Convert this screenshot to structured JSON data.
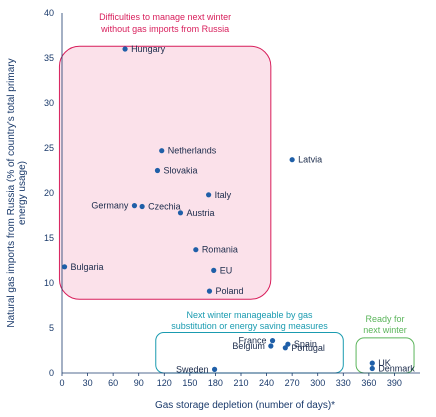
{
  "chart_data": {
    "type": "scatter",
    "xlabel": "Gas storage depletion (number of days)*",
    "ylabel": "Natural gas imports from Russia (% of country's total primary energy usage)",
    "ylabel_lines": [
      "Natural gas imports from Russia (% of country's total primary",
      "energy usage)"
    ],
    "xlim": [
      0,
      420
    ],
    "ylim": [
      0,
      40
    ],
    "x_ticks": [
      0,
      30,
      60,
      90,
      120,
      150,
      180,
      210,
      240,
      270,
      300,
      330,
      360,
      390
    ],
    "y_ticks": [
      0,
      5,
      10,
      15,
      20,
      25,
      30,
      35,
      40
    ],
    "grid": false,
    "marker_color": "#1f5fa8",
    "points": [
      {
        "name": "Hungary",
        "x": 74,
        "y": 36.0,
        "label_side": "right"
      },
      {
        "name": "Latvia",
        "x": 270,
        "y": 23.7,
        "label_side": "right"
      },
      {
        "name": "Netherlands",
        "x": 117,
        "y": 24.7,
        "label_side": "right"
      },
      {
        "name": "Slovakia",
        "x": 112,
        "y": 22.5,
        "label_side": "right"
      },
      {
        "name": "Italy",
        "x": 172,
        "y": 19.8,
        "label_side": "right"
      },
      {
        "name": "Czechia",
        "x": 94,
        "y": 18.5,
        "label_side": "right"
      },
      {
        "name": "Germany",
        "x": 85,
        "y": 18.6,
        "label_side": "left"
      },
      {
        "name": "Austria",
        "x": 139,
        "y": 17.8,
        "label_side": "right"
      },
      {
        "name": "Romania",
        "x": 157,
        "y": 13.7,
        "label_side": "right"
      },
      {
        "name": "EU",
        "x": 178,
        "y": 11.4,
        "label_side": "right"
      },
      {
        "name": "Bulgaria",
        "x": 3,
        "y": 11.8,
        "label_side": "right"
      },
      {
        "name": "Poland",
        "x": 173,
        "y": 9.1,
        "label_side": "right"
      },
      {
        "name": "France",
        "x": 247,
        "y": 3.6,
        "label_side": "left"
      },
      {
        "name": "Spain",
        "x": 265,
        "y": 3.2,
        "label_side": "right"
      },
      {
        "name": "Belgium",
        "x": 245,
        "y": 3.0,
        "label_side": "left"
      },
      {
        "name": "Portugal",
        "x": 262,
        "y": 2.8,
        "label_side": "right"
      },
      {
        "name": "Sweden",
        "x": 179,
        "y": 0.4,
        "label_side": "left"
      },
      {
        "name": "UK",
        "x": 364,
        "y": 1.1,
        "label_side": "right"
      },
      {
        "name": "Denmark",
        "x": 364,
        "y": 0.5,
        "label_side": "right"
      }
    ],
    "zones": [
      {
        "id": "difficult",
        "lines": [
          "Difficulties to manage next winter",
          "without gas imports from Russia"
        ],
        "color": "#d81e5b",
        "fill": "#fbe1ea",
        "x_range": [
          -3,
          245
        ],
        "y_range": [
          8.2,
          36.3
        ]
      },
      {
        "id": "manageable",
        "lines": [
          "Next winter manageable by gas",
          "substitution or energy saving measures"
        ],
        "color": "#1a9bb0",
        "fill": "#ffffff",
        "x_range": [
          110,
          330
        ],
        "y_range": [
          0.0,
          4.5
        ]
      },
      {
        "id": "ready",
        "lines": [
          "Ready for",
          "next winter"
        ],
        "color": "#5bb55b",
        "fill": "#ffffff",
        "x_range": [
          345,
          413
        ],
        "y_range": [
          0.0,
          3.9
        ]
      }
    ]
  }
}
